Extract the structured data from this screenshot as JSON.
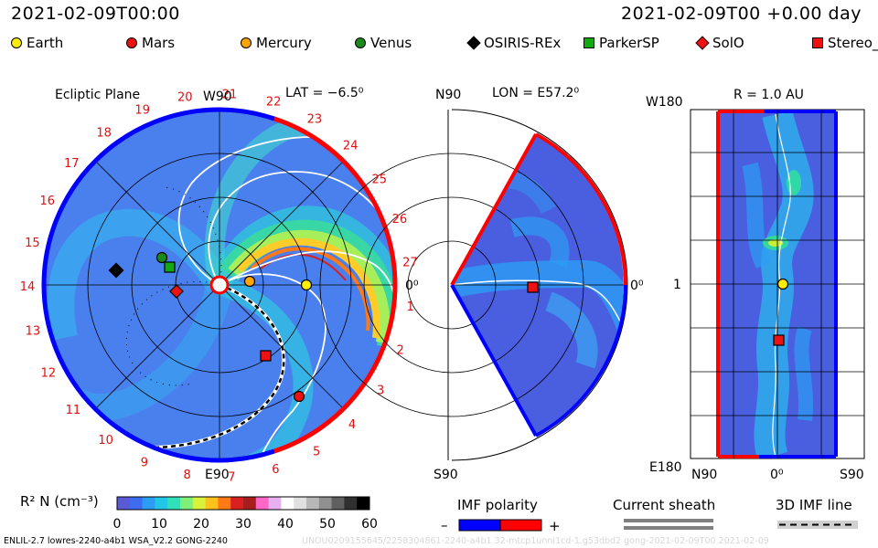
{
  "header": {
    "date_left": "2021-02-09T00:00",
    "date_right": "2021-02-09T00 +0.00 day"
  },
  "legend": [
    {
      "label": "Earth",
      "color": "#ffee00",
      "shape": "circle"
    },
    {
      "label": "Mars",
      "color": "#ee1111",
      "shape": "circle"
    },
    {
      "label": "Mercury",
      "color": "#ffa500",
      "shape": "circle"
    },
    {
      "label": "Venus",
      "color": "#1a8a1a",
      "shape": "circle"
    },
    {
      "label": "OSIRIS-REx",
      "color": "#000000",
      "shape": "diamond"
    },
    {
      "label": "ParkerSP",
      "color": "#11aa11",
      "shape": "square"
    },
    {
      "label": "SolO",
      "color": "#ee1111",
      "shape": "diamond"
    },
    {
      "label": "Stereo_",
      "color": "#ee1111",
      "shape": "square"
    }
  ],
  "panels": {
    "ecliptic": {
      "title": "Ecliptic Plane",
      "lat": "LAT = −6.5⁰",
      "top_label": "W90",
      "bottom_label": "E90",
      "right_label": "0⁰",
      "carrington_labels": [
        "27",
        "1",
        "2",
        "3",
        "4",
        "5",
        "6",
        "7",
        "8",
        "9",
        "10",
        "11",
        "12",
        "13",
        "14",
        "15",
        "16",
        "17",
        "18",
        "19",
        "20",
        "21",
        "22",
        "23",
        "24",
        "25",
        "26"
      ]
    },
    "meridional": {
      "title": "LON = E57.2⁰",
      "top_label": "N90",
      "bottom_label": "S90",
      "right_label": "0⁰"
    },
    "sphere": {
      "title": "R = 1.0 AU",
      "top_left": "W180",
      "mid_left": "1",
      "bottom_left": "E180",
      "x_left": "N90",
      "x_mid": "0⁰",
      "x_right": "S90"
    }
  },
  "colorbar": {
    "label": "R² N (cm⁻³)",
    "ticks": [
      "0",
      "10",
      "20",
      "30",
      "40",
      "50",
      "60"
    ],
    "colors": [
      "#5a5ad8",
      "#3d6cf0",
      "#2c9cf4",
      "#22c6e6",
      "#32e0b8",
      "#7ef07a",
      "#d8f23c",
      "#ffc21a",
      "#ff7a14",
      "#d92020",
      "#a81d1d",
      "#ff66c6",
      "#e8b0f0",
      "#ffffff",
      "#e0e0e0",
      "#b8b8b8",
      "#909090",
      "#606060",
      "#303030",
      "#000000"
    ]
  },
  "imf": {
    "label": "IMF polarity",
    "minus": "–",
    "plus": "+",
    "neg_color": "#0000ff",
    "pos_color": "#ff0000"
  },
  "sheath": {
    "label": "Current sheath"
  },
  "imf3d": {
    "label": "3D IMF line"
  },
  "footer": {
    "left": "ENLIL-2.7 lowres-2240-a4b1 WSA_V2.2 GONG-2240",
    "ghost": "UNOU0209155645/2258304861-2240-a4b1 32-mtcp1unni1cd-1.g53dbd2 gong-2021-02-09T00    2021-02-09"
  },
  "chart_data": [
    {
      "type": "heatmap",
      "title": "Ecliptic Plane",
      "lat": "LAT = −6.5⁰",
      "colorbar_range": [
        0,
        60
      ],
      "objects": [
        {
          "name": "Earth",
          "angle_deg": 0,
          "radius_au": 1.0
        },
        {
          "name": "Mercury",
          "angle_deg": 5,
          "radius_au": 0.35
        },
        {
          "name": "Venus",
          "angle_deg": 155,
          "radius_au": 0.72
        },
        {
          "name": "ParkerSP",
          "angle_deg": 160,
          "radius_au": 0.6
        },
        {
          "name": "OSIRIS-REx",
          "angle_deg": 170,
          "radius_au": 1.2
        },
        {
          "name": "SolO",
          "angle_deg": 185,
          "radius_au": 0.5
        },
        {
          "name": "Stereo_",
          "angle_deg": 300,
          "radius_au": 0.96
        },
        {
          "name": "Mars",
          "angle_deg": 315,
          "radius_au": 1.4
        }
      ]
    },
    {
      "type": "heatmap",
      "title": "LON = E57.2⁰",
      "objects": [
        {
          "name": "Stereo_",
          "lat_deg": 0,
          "radius_au": 0.96
        }
      ]
    },
    {
      "type": "heatmap",
      "title": "R = 1.0 AU",
      "objects": [
        {
          "name": "Earth",
          "lat_deg": 0,
          "lon_deg": 0
        },
        {
          "name": "Stereo_",
          "lat_deg": -2,
          "lon_deg": -57
        }
      ]
    }
  ]
}
